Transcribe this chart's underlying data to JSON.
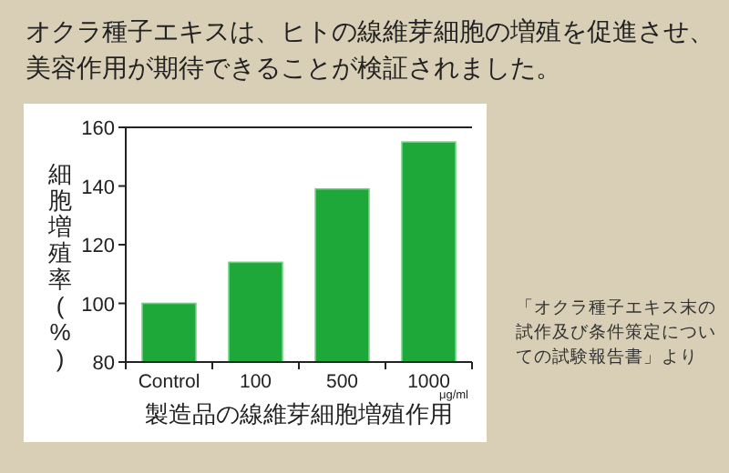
{
  "chart_data": {
    "type": "bar",
    "title": "オクラ種子エキスは、ヒトの線維芽細胞の増殖を促進させ、美容作用が期待できることが検証されました。",
    "categories": [
      "Control",
      "100",
      "500",
      "1000"
    ],
    "values": [
      100,
      114,
      139,
      155
    ],
    "color": "#1fa83a",
    "xlabel": "製造品の線維芽細胞増殖作用",
    "ylabel": "細胞増殖率(%)",
    "ylim": [
      80,
      160
    ],
    "yticks": [
      80,
      100,
      120,
      140,
      160
    ],
    "annotations": [
      "μg/ml",
      "「オクラ種子エキス末の試作及び条件策定についての試験報告書」より"
    ]
  }
}
